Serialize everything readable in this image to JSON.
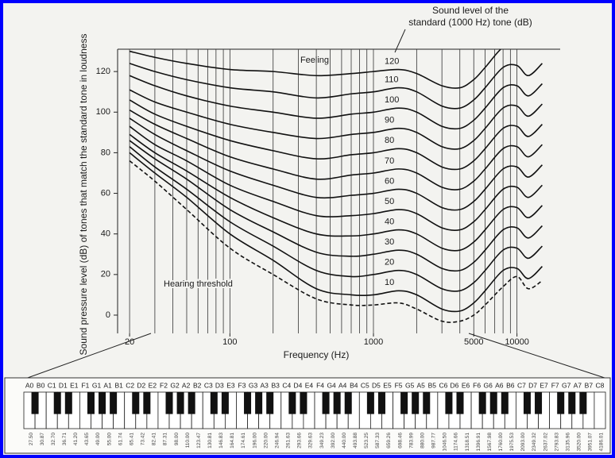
{
  "chart_data": {
    "type": "line",
    "xlabel": "Frequency (Hz)",
    "ylabel": "Sound pressure level (dB) of tones that match the standard tone in loudness",
    "annotations": [
      "Sound level of the",
      "standard (1000 Hz) tone (dB)",
      "Feeling"
    ],
    "x": [
      20,
      30,
      50,
      100,
      200,
      400,
      700,
      1000,
      1500,
      2000,
      3000,
      4000,
      5000,
      6000,
      8000,
      10000,
      12000,
      15000
    ],
    "xscale": "log",
    "xlim": [
      16.5,
      20000
    ],
    "xticks": [
      20,
      100,
      1000,
      5000,
      10000
    ],
    "xgrid": [
      20,
      30,
      40,
      50,
      60,
      70,
      80,
      90,
      100,
      200,
      300,
      400,
      500,
      600,
      700,
      800,
      900,
      1000,
      2000,
      3000,
      4000,
      5000,
      6000,
      7000,
      8000,
      9000,
      10000
    ],
    "ylim": [
      -9,
      131
    ],
    "yticks": [
      0,
      20,
      40,
      60,
      80,
      100,
      120
    ],
    "grid": "x",
    "series": [
      {
        "name": "120",
        "color": "#111111",
        "style": "solid",
        "values": [
          130,
          127,
          124,
          121,
          120,
          118,
          119,
          120,
          121,
          119,
          113,
          112,
          116,
          122,
          132,
          133,
          null,
          null
        ]
      },
      {
        "name": "110",
        "color": "#111111",
        "style": "solid",
        "values": [
          124,
          120,
          116,
          112,
          110,
          107,
          109,
          110,
          112,
          110,
          103,
          102,
          106,
          112,
          122,
          123,
          118,
          124
        ]
      },
      {
        "name": "100",
        "color": "#111111",
        "style": "solid",
        "values": [
          118,
          113,
          108,
          103,
          100,
          97,
          99,
          100,
          102,
          100,
          93,
          92,
          96,
          102,
          112,
          113,
          108,
          114
        ]
      },
      {
        "name": "90",
        "color": "#111111",
        "style": "solid",
        "values": [
          111,
          105,
          100,
          94,
          90,
          87,
          89,
          90,
          92,
          90,
          83,
          82,
          86,
          92,
          102,
          103,
          98,
          104
        ]
      },
      {
        "name": "80",
        "color": "#111111",
        "style": "solid",
        "values": [
          106,
          99,
          93,
          86,
          81,
          77,
          79,
          80,
          82,
          80,
          73,
          72,
          76,
          82,
          92,
          93,
          88,
          94
        ]
      },
      {
        "name": "70",
        "color": "#111111",
        "style": "solid",
        "values": [
          101,
          94,
          87,
          78,
          72,
          67,
          69,
          70,
          72,
          70,
          63,
          62,
          66,
          72,
          82,
          83,
          78,
          84
        ]
      },
      {
        "name": "60",
        "color": "#111111",
        "style": "solid",
        "values": [
          97,
          89,
          81,
          71,
          64,
          58,
          59,
          60,
          62,
          60,
          53,
          52,
          56,
          62,
          72,
          73,
          68,
          74
        ]
      },
      {
        "name": "50",
        "color": "#111111",
        "style": "solid",
        "values": [
          93,
          84,
          76,
          64,
          56,
          49,
          49,
          50,
          52,
          50,
          43,
          42,
          46,
          52,
          62,
          63,
          58,
          64
        ]
      },
      {
        "name": "40",
        "color": "#111111",
        "style": "solid",
        "values": [
          89,
          80,
          71,
          58,
          48,
          40,
          39,
          40,
          42,
          40,
          33,
          32,
          36,
          42,
          52,
          53,
          48,
          54
        ]
      },
      {
        "name": "30",
        "color": "#111111",
        "style": "solid",
        "values": [
          86,
          77,
          67,
          52,
          41,
          31,
          29,
          30,
          32,
          30,
          23,
          22,
          26,
          32,
          42,
          43,
          38,
          44
        ]
      },
      {
        "name": "20",
        "color": "#111111",
        "style": "solid",
        "values": [
          83,
          73,
          62,
          46,
          34,
          22,
          19,
          20,
          22,
          20,
          13,
          12,
          16,
          22,
          32,
          33,
          28,
          34
        ]
      },
      {
        "name": "10",
        "color": "#111111",
        "style": "solid",
        "values": [
          80,
          70,
          58,
          40,
          27,
          13,
          10,
          10,
          12,
          10,
          3,
          2,
          6,
          12,
          22,
          23,
          18,
          24
        ]
      },
      {
        "name": "Hearing threshold",
        "color": "#111111",
        "style": "dashed",
        "values": [
          76,
          66,
          52,
          33,
          20,
          8,
          5,
          5,
          6,
          3,
          -3,
          -3,
          0,
          5,
          14,
          19,
          13,
          17
        ]
      }
    ]
  },
  "keyboard": {
    "notes": [
      "A0",
      "B0",
      "C1",
      "D1",
      "E1",
      "F1",
      "G1",
      "A1",
      "B1",
      "C2",
      "D2",
      "E2",
      "F2",
      "G2",
      "A2",
      "B2",
      "C3",
      "D3",
      "E3",
      "F3",
      "G3",
      "A3",
      "B3",
      "C4",
      "D4",
      "E4",
      "F4",
      "G4",
      "A4",
      "B4",
      "C5",
      "D5",
      "E5",
      "F5",
      "G5",
      "A5",
      "B5",
      "C6",
      "D6",
      "E6",
      "F6",
      "G6",
      "A6",
      "B6",
      "C7",
      "D7",
      "E7",
      "F7",
      "G7",
      "A7",
      "B7",
      "C8"
    ],
    "frequencies": [
      "27.50",
      "30.87",
      "32.70",
      "36.71",
      "41.20",
      "43.65",
      "49.00",
      "55.00",
      "61.74",
      "65.41",
      "73.42",
      "82.41",
      "87.31",
      "98.00",
      "110.00",
      "123.47",
      "130.81",
      "146.83",
      "164.81",
      "174.61",
      "196.00",
      "220.00",
      "246.94",
      "261.63",
      "293.66",
      "329.63",
      "349.23",
      "392.00",
      "440.00",
      "493.88",
      "523.25",
      "587.33",
      "659.26",
      "698.46",
      "783.99",
      "880.00",
      "987.77",
      "1046.50",
      "1174.66",
      "1318.51",
      "1396.91",
      "1567.98",
      "1760.00",
      "1975.53",
      "2093.00",
      "2349.32",
      "2637.02",
      "2793.83",
      "3135.96",
      "3520.00",
      "3951.07",
      "4186.01"
    ]
  }
}
